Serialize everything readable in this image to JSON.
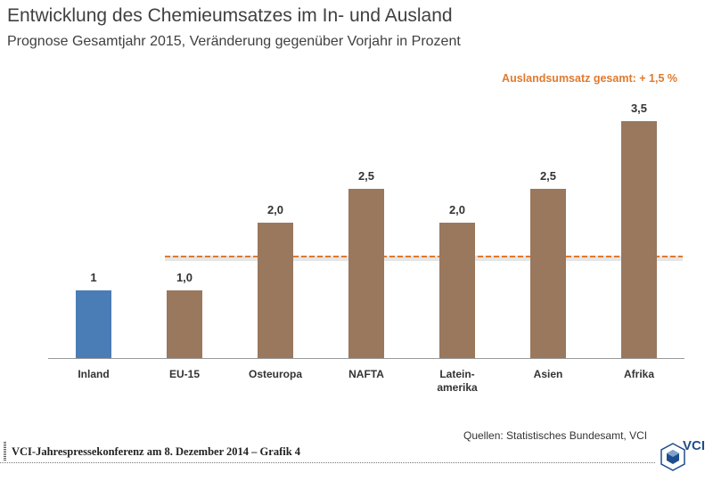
{
  "chart_data": {
    "type": "bar",
    "title": "Entwicklung des Chemieumsatzes im In- und Ausland",
    "subtitle": "Prognose Gesamtjahr 2015, Veränderung gegenüber Vorjahr in Prozent",
    "categories": [
      [
        "Inland"
      ],
      [
        "EU-15"
      ],
      [
        "Osteuropa"
      ],
      [
        "NAFTA"
      ],
      [
        "Latein-",
        "amerika"
      ],
      [
        "Asien"
      ],
      [
        "Afrika"
      ]
    ],
    "values": [
      1,
      1.0,
      2.0,
      2.5,
      2.0,
      2.5,
      3.5
    ],
    "value_labels": [
      "1",
      "1,0",
      "2,0",
      "2,5",
      "2,0",
      "2,5",
      "3,5"
    ],
    "ylim": [
      0,
      3.5
    ],
    "xlabel": "",
    "ylabel": "",
    "grid": false,
    "reference_line": {
      "value": 1.5,
      "label": "Auslandsumsatz gesamt: + 1,5 %",
      "applies_from_index": 1
    },
    "colors": {
      "inland": "#4a7cb5",
      "ausland": "#99785e",
      "reference": "#e07a2e",
      "axis": "#999999"
    }
  },
  "source": "Quellen: Statistisches Bundesamt, VCI",
  "footer": "VCI-Jahrespressekonferenz am 8. Dezember 2014 – Grafik 4",
  "logo": {
    "text": "VCI",
    "icon": "vci-hexagon-icon"
  }
}
